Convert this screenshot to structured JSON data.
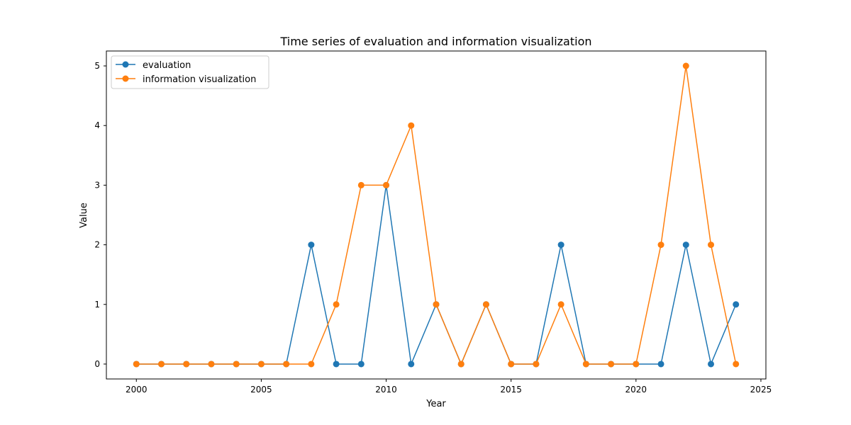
{
  "chart_data": {
    "type": "line",
    "title": "Time series of evaluation and information visualization",
    "xlabel": "Year",
    "ylabel": "Value",
    "x": [
      2000,
      2001,
      2002,
      2003,
      2004,
      2005,
      2006,
      2007,
      2008,
      2009,
      2010,
      2011,
      2012,
      2013,
      2014,
      2015,
      2016,
      2017,
      2018,
      2019,
      2020,
      2021,
      2022,
      2023,
      2024
    ],
    "xlim": [
      1998.8,
      2025.2
    ],
    "ylim": [
      -0.25,
      5.25
    ],
    "xticks": [
      2000,
      2005,
      2010,
      2015,
      2020,
      2025
    ],
    "yticks": [
      0,
      1,
      2,
      3,
      4,
      5
    ],
    "grid": false,
    "legend_position": "top-left",
    "series": [
      {
        "name": "evaluation",
        "color": "#1f77b4",
        "values": [
          0,
          0,
          0,
          0,
          0,
          0,
          0,
          2,
          0,
          0,
          3,
          0,
          1,
          0,
          1,
          0,
          0,
          2,
          0,
          0,
          0,
          0,
          2,
          0,
          1
        ]
      },
      {
        "name": "information visualization",
        "color": "#ff7f0e",
        "values": [
          0,
          0,
          0,
          0,
          0,
          0,
          0,
          0,
          1,
          3,
          3,
          4,
          1,
          0,
          1,
          0,
          0,
          1,
          0,
          0,
          0,
          2,
          5,
          2,
          0
        ]
      }
    ]
  }
}
